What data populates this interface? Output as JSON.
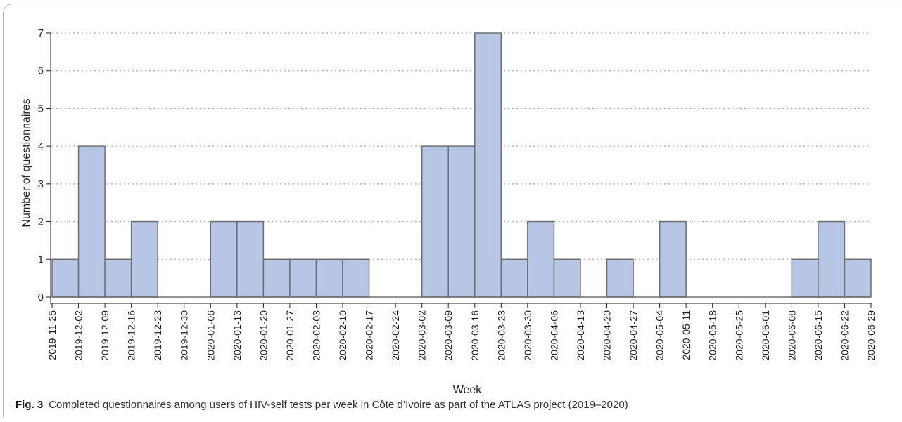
{
  "caption": {
    "figure_label": "Fig. 3",
    "text": "Completed questionnaires among users of HIV-self tests per week in Côte d’Ivoire as part of the ATLAS project (2019–2020)"
  },
  "colors": {
    "bar_fill": "#b8c6e6",
    "bar_stroke": "#6e6e6e",
    "grid": "#b0b0b0",
    "axis": "#222222"
  },
  "chart_data": {
    "type": "bar",
    "title": "",
    "xlabel": "Week",
    "ylabel": "Number of questionnaires",
    "ylim": [
      0,
      7
    ],
    "yticks": [
      0,
      1,
      2,
      3,
      4,
      5,
      6,
      7
    ],
    "grid": "horizontal dotted",
    "x_ticks": [
      "2019-11-25",
      "2019-12-02",
      "2019-12-09",
      "2019-12-16",
      "2019-12-23",
      "2019-12-30",
      "2020-01-06",
      "2020-01-13",
      "2020-01-20",
      "2020-01-27",
      "2020-02-03",
      "2020-02-10",
      "2020-02-17",
      "2020-02-24",
      "2020-03-02",
      "2020-03-09",
      "2020-03-16",
      "2020-03-23",
      "2020-03-30",
      "2020-04-06",
      "2020-04-13",
      "2020-04-20",
      "2020-04-27",
      "2020-05-04",
      "2020-05-11",
      "2020-05-18",
      "2020-05-25",
      "2020-06-01",
      "2020-06-08",
      "2020-06-15",
      "2020-06-22",
      "2020-06-29"
    ],
    "values": [
      1,
      4,
      1,
      2,
      0,
      0,
      2,
      2,
      1,
      1,
      1,
      1,
      0,
      0,
      4,
      4,
      7,
      1,
      2,
      1,
      0,
      1,
      0,
      2,
      0,
      0,
      0,
      0,
      1,
      2,
      1
    ]
  }
}
